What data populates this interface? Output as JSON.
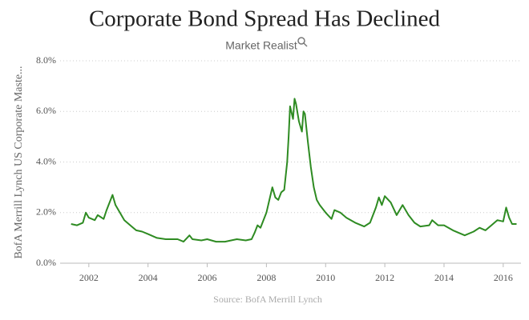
{
  "chart_data": {
    "type": "line",
    "title": "Corporate Bond Spread Has Declined",
    "subtitle": "Market Realist",
    "y_label": "BofA Merrill Lynch US Corporate Maste...",
    "source": "Source: BofA Merrill Lynch",
    "color": "#2e8b22",
    "grid": true,
    "xlim": [
      2001.03,
      2016.6
    ],
    "xticks": [
      2002,
      2004,
      2006,
      2008,
      2010,
      2012,
      2014,
      2016
    ],
    "ylim": [
      0,
      8
    ],
    "yticks": [
      {
        "value": 0,
        "label": "0.0%"
      },
      {
        "value": 2,
        "label": "2.0%"
      },
      {
        "value": 4,
        "label": "4.0%"
      },
      {
        "value": 6,
        "label": "6.0%"
      },
      {
        "value": 8,
        "label": "8.0%"
      }
    ],
    "x": [
      2001.4,
      2001.6,
      2001.8,
      2001.9,
      2002.0,
      2002.2,
      2002.3,
      2002.5,
      2002.6,
      2002.7,
      2002.8,
      2002.9,
      2003.0,
      2003.2,
      2003.4,
      2003.6,
      2003.8,
      2004.0,
      2004.3,
      2004.6,
      2005.0,
      2005.2,
      2005.4,
      2005.5,
      2005.8,
      2006.0,
      2006.3,
      2006.6,
      2007.0,
      2007.3,
      2007.5,
      2007.6,
      2007.7,
      2007.8,
      2008.0,
      2008.1,
      2008.2,
      2008.3,
      2008.4,
      2008.5,
      2008.6,
      2008.7,
      2008.75,
      2008.8,
      2008.9,
      2008.95,
      2009.0,
      2009.1,
      2009.2,
      2009.25,
      2009.3,
      2009.4,
      2009.5,
      2009.6,
      2009.7,
      2009.8,
      2010.0,
      2010.2,
      2010.3,
      2010.5,
      2010.7,
      2011.0,
      2011.3,
      2011.5,
      2011.7,
      2011.8,
      2011.9,
      2012.0,
      2012.2,
      2012.4,
      2012.6,
      2012.8,
      2013.0,
      2013.2,
      2013.5,
      2013.6,
      2013.8,
      2014.0,
      2014.3,
      2014.5,
      2014.7,
      2015.0,
      2015.2,
      2015.4,
      2015.6,
      2015.8,
      2016.0,
      2016.1,
      2016.2,
      2016.3,
      2016.45
    ],
    "values": [
      1.55,
      1.5,
      1.6,
      2.0,
      1.8,
      1.7,
      1.9,
      1.75,
      2.1,
      2.4,
      2.7,
      2.3,
      2.1,
      1.7,
      1.5,
      1.3,
      1.25,
      1.15,
      1.0,
      0.95,
      0.95,
      0.85,
      1.1,
      0.95,
      0.9,
      0.95,
      0.85,
      0.85,
      0.95,
      0.9,
      0.95,
      1.2,
      1.5,
      1.4,
      2.0,
      2.5,
      3.0,
      2.6,
      2.5,
      2.8,
      2.9,
      4.0,
      5.0,
      6.2,
      5.7,
      6.5,
      6.3,
      5.6,
      5.2,
      6.0,
      5.9,
      4.8,
      3.8,
      3.0,
      2.5,
      2.3,
      2.0,
      1.75,
      2.1,
      2.0,
      1.8,
      1.6,
      1.45,
      1.6,
      2.2,
      2.6,
      2.3,
      2.65,
      2.4,
      1.9,
      2.3,
      1.9,
      1.6,
      1.45,
      1.5,
      1.7,
      1.5,
      1.5,
      1.3,
      1.2,
      1.1,
      1.25,
      1.4,
      1.3,
      1.5,
      1.7,
      1.65,
      2.2,
      1.8,
      1.55,
      1.55
    ]
  }
}
